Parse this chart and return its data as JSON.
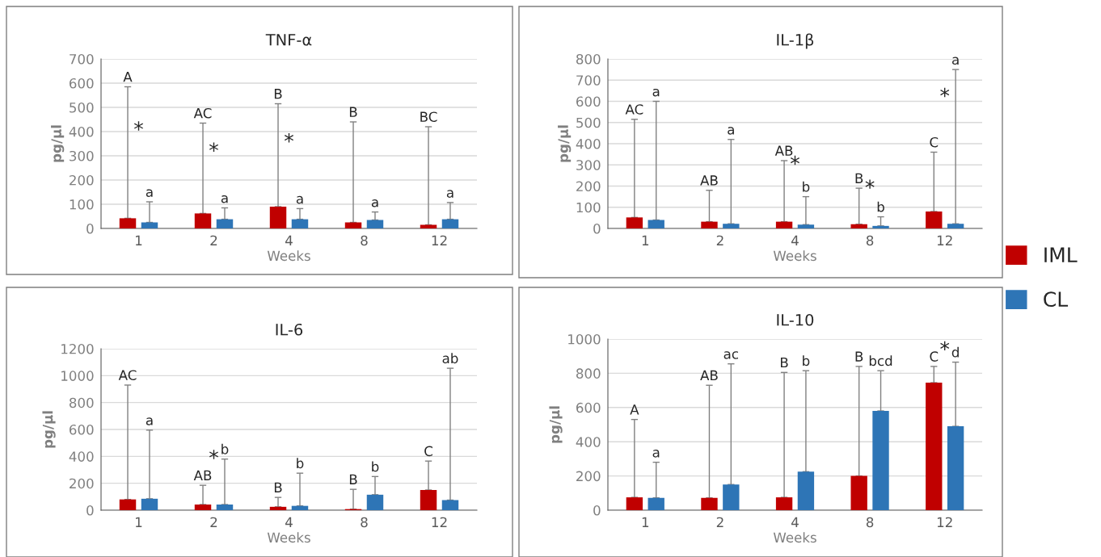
{
  "chart_data": [
    {
      "type": "bar",
      "title": "TNF-α",
      "xlabel": "Weeks",
      "ylabel": "pg/µl",
      "categories": [
        "1",
        "2",
        "4",
        "8",
        "12"
      ],
      "ylim": [
        0,
        700
      ],
      "yticks": [
        0,
        100,
        200,
        300,
        400,
        500,
        600,
        700
      ],
      "grid": "y",
      "legend": "right",
      "series": [
        {
          "name": "IML",
          "color": "#c00000",
          "values": [
            42,
            62,
            90,
            25,
            15
          ],
          "errors": [
            [
              42,
              585
            ],
            [
              62,
              435
            ],
            [
              90,
              515
            ],
            [
              25,
              440
            ],
            [
              15,
              420
            ]
          ]
        },
        {
          "name": "CL",
          "color": "#2e75b6",
          "values": [
            25,
            38,
            38,
            35,
            38
          ],
          "errors": [
            [
              25,
              110
            ],
            [
              38,
              85
            ],
            [
              38,
              82
            ],
            [
              35,
              68
            ],
            [
              38,
              107
            ]
          ]
        }
      ],
      "annotations": [
        "A",
        "AC",
        "B",
        "B",
        "BC",
        "a",
        "a",
        "a",
        "a",
        "a",
        "*",
        "*",
        "*",
        null,
        null
      ]
    },
    {
      "type": "bar",
      "title": "IL-1β",
      "xlabel": "Weeks",
      "ylabel": "pg/µl",
      "categories": [
        "1",
        "2",
        "4",
        "8",
        "12"
      ],
      "ylim": [
        0,
        800
      ],
      "yticks": [
        0,
        100,
        200,
        300,
        400,
        500,
        600,
        700,
        800
      ],
      "grid": "y",
      "series": [
        {
          "color": "#c00000",
          "values": [
            52,
            32,
            32,
            20,
            80
          ],
          "errors": [
            [
              52,
              515
            ],
            [
              32,
              180
            ],
            [
              32,
              320
            ],
            [
              20,
              190
            ],
            [
              80,
              360
            ]
          ]
        },
        {
          "color": "#2e75b6",
          "values": [
            40,
            22,
            18,
            12,
            22
          ],
          "errors": [
            [
              40,
              600
            ],
            [
              22,
              420
            ],
            [
              18,
              150
            ],
            [
              12,
              55
            ],
            [
              22,
              750
            ]
          ]
        }
      ],
      "annotations": [
        "AC",
        "AB",
        "AB",
        "B",
        "C",
        "a",
        "a",
        "b",
        "b",
        "a",
        null,
        null,
        "*",
        "*",
        "*"
      ]
    },
    {
      "type": "bar",
      "title": "IL-6",
      "xlabel": "Weeks",
      "ylabel": "pg/µl",
      "categories": [
        "1",
        "2",
        "4",
        "8",
        "12"
      ],
      "ylim": [
        0,
        1200
      ],
      "yticks": [
        0,
        200,
        400,
        600,
        800,
        1000,
        1200
      ],
      "grid": "y",
      "series": [
        {
          "color": "#c00000",
          "values": [
            80,
            42,
            25,
            8,
            150
          ],
          "errors": [
            [
              80,
              930
            ],
            [
              42,
              185
            ],
            [
              25,
              95
            ],
            [
              8,
              155
            ],
            [
              150,
              365
            ]
          ]
        },
        {
          "color": "#2e75b6",
          "values": [
            85,
            42,
            32,
            115,
            75
          ],
          "errors": [
            [
              85,
              595
            ],
            [
              42,
              380
            ],
            [
              32,
              275
            ],
            [
              115,
              250
            ],
            [
              75,
              1055
            ]
          ]
        }
      ],
      "annotations": [
        "AC",
        "AB",
        "B",
        "B",
        "C",
        "a",
        "b",
        "b",
        "b",
        "ab",
        null,
        "*",
        null,
        null,
        null
      ]
    },
    {
      "type": "bar",
      "title": "IL-10",
      "xlabel": "Weeks",
      "ylabel": "pg/µl",
      "categories": [
        "1",
        "2",
        "4",
        "8",
        "12"
      ],
      "ylim": [
        0,
        1000
      ],
      "yticks": [
        0,
        200,
        400,
        600,
        800,
        1000
      ],
      "grid": "y",
      "series": [
        {
          "color": "#c00000",
          "values": [
            75,
            72,
            75,
            200,
            745
          ],
          "errors": [
            [
              75,
              530
            ],
            [
              72,
              730
            ],
            [
              75,
              805
            ],
            [
              200,
              840
            ],
            [
              745,
              840
            ]
          ]
        },
        {
          "color": "#2e75b6",
          "values": [
            72,
            150,
            225,
            580,
            490
          ],
          "errors": [
            [
              72,
              280
            ],
            [
              150,
              855
            ],
            [
              225,
              815
            ],
            [
              580,
              815
            ],
            [
              490,
              865
            ]
          ]
        }
      ],
      "annotations": [
        "A",
        "AB",
        "B",
        "B",
        "C",
        "a",
        "ac",
        "b",
        "bcd",
        "d",
        null,
        null,
        null,
        null,
        "*"
      ]
    }
  ]
}
